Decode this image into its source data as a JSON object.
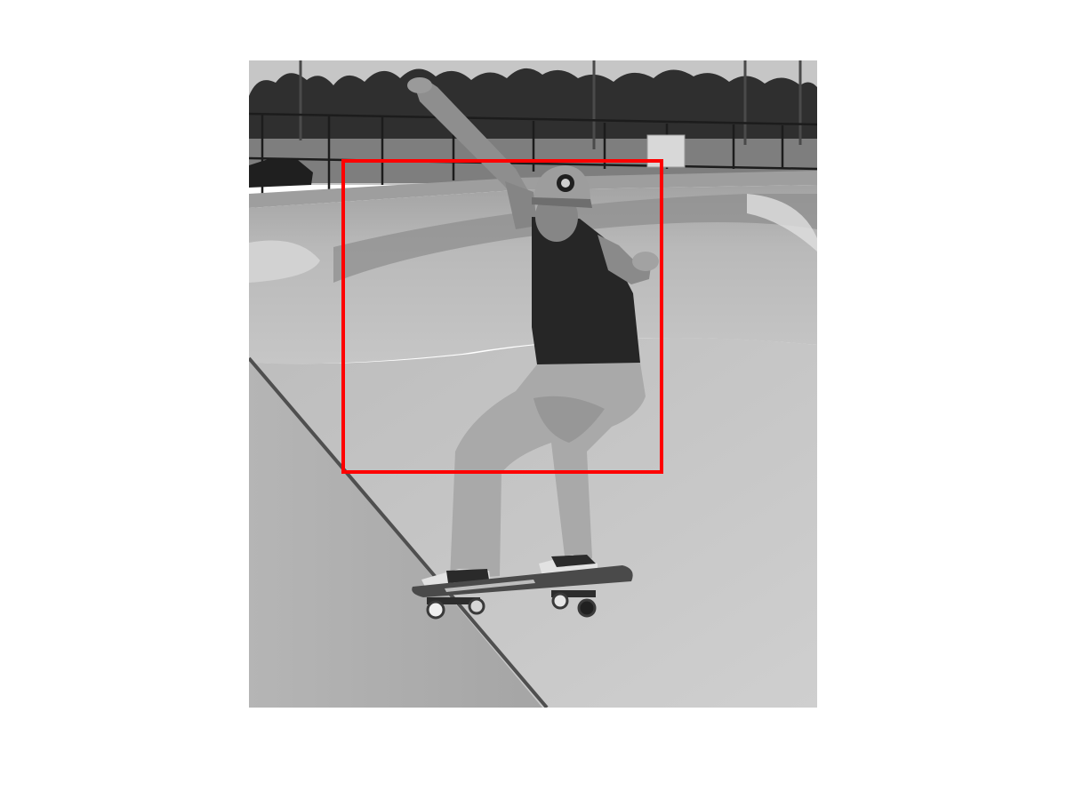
{
  "image": {
    "mode": "grayscale",
    "subject": "skateboarder",
    "overlay_color": "#ff0000"
  },
  "palette": {
    "sky": "#c8c8c8",
    "trees": "#2e2e2e",
    "concrete_light": "#c9c9c9",
    "concrete_mid": "#aaaaaa",
    "concrete_dark": "#8a8a8a",
    "shirt": "#262626",
    "jeans": "#a9a9a9",
    "skin": "#8e8e8e",
    "cap": "#9c9c9c"
  }
}
